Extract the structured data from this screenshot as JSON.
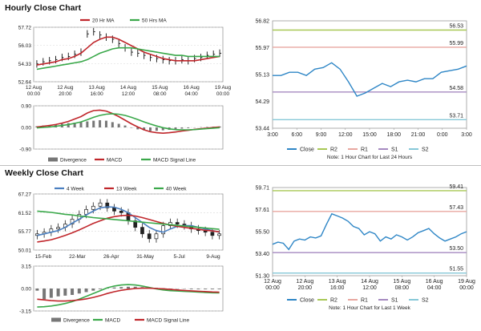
{
  "sections": {
    "hourly_title": "Hourly Close Chart",
    "weekly_title": "Weekly Close Chart"
  },
  "colors": {
    "price": "#111111",
    "ma_red": "#c0262b",
    "ma_green": "#3aa84a",
    "ma_blue": "#4a7fc0",
    "close_line": "#2e86c6",
    "r2": "#a8c855",
    "r1": "#e8a7a0",
    "s1": "#a58ac0",
    "s2": "#86c8d8",
    "divergence": "#777777"
  },
  "chart_data": [
    {
      "id": "hourly_price",
      "type": "line",
      "legend": [
        "20 Hr MA",
        "50 Hrs MA"
      ],
      "legend_colors": [
        "#c0262b",
        "#3aa84a"
      ],
      "y_ticks": [
        "57.72",
        "56.03",
        "54.33",
        "52.64"
      ],
      "ylim": [
        52.64,
        57.72
      ],
      "x_labels": [
        [
          "12 Aug",
          "00:00"
        ],
        [
          "12 Aug",
          "20:00"
        ],
        [
          "13 Aug",
          "16:00"
        ],
        [
          "14 Aug",
          "12:00"
        ],
        [
          "15 Aug",
          "08:00"
        ],
        [
          "16 Aug",
          "04:00"
        ],
        [
          "19 Aug",
          "00:00"
        ]
      ],
      "series": [
        {
          "name": "Price",
          "style": "bars",
          "values": [
            54.3,
            54.5,
            54.6,
            54.7,
            54.9,
            55.0,
            55.2,
            55.4,
            57.1,
            57.3,
            57.0,
            56.8,
            56.6,
            56.2,
            55.8,
            55.4,
            55.3,
            55.1,
            54.9,
            54.8,
            54.7,
            54.6,
            54.6,
            54.7,
            54.6,
            54.8,
            54.9,
            55.1,
            55.2,
            55.3
          ]
        },
        {
          "name": "20 Hr MA",
          "values": [
            54.2,
            54.3,
            54.4,
            54.5,
            54.7,
            54.8,
            55.0,
            55.3,
            55.8,
            56.3,
            56.6,
            56.8,
            56.8,
            56.6,
            56.3,
            56.0,
            55.7,
            55.4,
            55.2,
            55.0,
            54.8,
            54.7,
            54.6,
            54.6,
            54.6,
            54.6,
            54.7,
            54.8,
            54.9,
            55.0
          ]
        },
        {
          "name": "50 Hrs MA",
          "values": [
            53.8,
            53.9,
            54.0,
            54.1,
            54.2,
            54.3,
            54.4,
            54.5,
            54.7,
            55.0,
            55.3,
            55.5,
            55.7,
            55.8,
            55.8,
            55.8,
            55.7,
            55.6,
            55.5,
            55.4,
            55.3,
            55.2,
            55.1,
            55.1,
            55.0,
            55.0,
            55.0,
            55.0,
            55.0,
            55.0
          ]
        }
      ]
    },
    {
      "id": "hourly_macd",
      "type": "line",
      "y_ticks": [
        "0.90",
        "0.00",
        "-0.90"
      ],
      "ylim": [
        -0.9,
        0.9
      ],
      "legend": [
        "Divergence",
        "MACD",
        "MACD Signal Line"
      ],
      "legend_colors": [
        "#777777",
        "#c0262b",
        "#3aa84a"
      ],
      "series": [
        {
          "name": "Divergence",
          "style": "hist",
          "values": [
            0.05,
            0.08,
            0.1,
            0.12,
            0.15,
            0.18,
            0.2,
            0.22,
            0.25,
            0.28,
            0.3,
            0.28,
            0.22,
            0.15,
            0.08,
            0.0,
            -0.08,
            -0.12,
            -0.15,
            -0.14,
            -0.12,
            -0.1,
            -0.08,
            -0.05,
            -0.03,
            -0.01,
            0.01,
            0.02,
            0.03,
            0.04
          ]
        },
        {
          "name": "MACD",
          "values": [
            0.02,
            0.05,
            0.08,
            0.12,
            0.18,
            0.25,
            0.35,
            0.45,
            0.6,
            0.7,
            0.72,
            0.68,
            0.58,
            0.45,
            0.3,
            0.15,
            0.02,
            -0.1,
            -0.18,
            -0.22,
            -0.24,
            -0.22,
            -0.19,
            -0.15,
            -0.12,
            -0.08,
            -0.05,
            -0.03,
            0.0,
            0.02
          ]
        },
        {
          "name": "MACD Signal Line",
          "values": [
            -0.02,
            0.0,
            0.02,
            0.05,
            0.08,
            0.12,
            0.17,
            0.23,
            0.32,
            0.42,
            0.5,
            0.55,
            0.57,
            0.55,
            0.5,
            0.42,
            0.33,
            0.23,
            0.14,
            0.06,
            -0.01,
            -0.06,
            -0.09,
            -0.1,
            -0.1,
            -0.09,
            -0.07,
            -0.05,
            -0.03,
            -0.01
          ]
        }
      ]
    },
    {
      "id": "hourly_close",
      "type": "line",
      "y_ticks": [
        "56.82",
        "55.97",
        "55.13",
        "54.29",
        "53.44"
      ],
      "ylim": [
        53.44,
        56.82
      ],
      "x_labels": [
        "3:00",
        "6:00",
        "9:00",
        "12:00",
        "15:00",
        "18:00",
        "21:00",
        "0:00",
        "3:00"
      ],
      "levels": [
        {
          "name": "R2",
          "value": 56.53,
          "label": "56.53",
          "color": "#a8c855"
        },
        {
          "name": "R1",
          "value": 55.99,
          "label": "55.99",
          "color": "#e8a7a0"
        },
        {
          "name": "S1",
          "value": 54.58,
          "label": "54.58",
          "color": "#a58ac0"
        },
        {
          "name": "S2",
          "value": 53.71,
          "label": "53.71",
          "color": "#86c8d8"
        }
      ],
      "series": [
        {
          "name": "Close",
          "values": [
            55.1,
            55.1,
            55.2,
            55.2,
            55.1,
            55.3,
            55.35,
            55.5,
            55.3,
            54.9,
            54.45,
            54.55,
            54.7,
            54.85,
            54.75,
            54.9,
            54.95,
            54.9,
            55.0,
            55.0,
            55.2,
            55.25,
            55.3,
            55.4
          ]
        }
      ],
      "legend": [
        "Close",
        "R2",
        "R1",
        "S1",
        "S2"
      ],
      "note": "Note: 1 Hour Chart for Last 24 Hours"
    },
    {
      "id": "weekly_price",
      "type": "line",
      "legend": [
        "4 Week",
        "13 Week",
        "40 Week"
      ],
      "legend_colors": [
        "#4a7fc0",
        "#c0262b",
        "#3aa84a"
      ],
      "y_ticks": [
        "67.27",
        "61.52",
        "55.77",
        "50.01"
      ],
      "ylim": [
        50.01,
        67.27
      ],
      "x_labels": [
        "15-Feb",
        "22-Mar",
        "26-Apr",
        "31-May",
        "5-Jul",
        "9-Aug"
      ],
      "series": [
        {
          "name": "Price",
          "style": "candles",
          "values": [
            55.0,
            55.5,
            56.5,
            57.0,
            58.0,
            59.5,
            61.0,
            62.5,
            63.5,
            64.5,
            63.0,
            62.0,
            61.5,
            59.0,
            57.0,
            55.0,
            53.5,
            55.0,
            57.5,
            58.5,
            58.0,
            57.5,
            56.5,
            56.0,
            55.5,
            54.5,
            55.0
          ]
        },
        {
          "name": "4 Week",
          "values": [
            54.5,
            55.0,
            55.5,
            56.0,
            57.0,
            58.3,
            59.5,
            60.8,
            62.0,
            63.0,
            63.3,
            63.2,
            62.5,
            61.5,
            60.0,
            58.5,
            57.0,
            56.0,
            55.5,
            56.5,
            57.3,
            57.5,
            57.5,
            57.0,
            56.5,
            56.0,
            55.5
          ]
        },
        {
          "name": "13 Week",
          "values": [
            52.5,
            52.8,
            53.2,
            53.8,
            54.5,
            55.3,
            56.2,
            57.2,
            58.2,
            59.0,
            59.8,
            60.3,
            60.6,
            60.7,
            60.5,
            60.0,
            59.4,
            58.8,
            58.2,
            57.7,
            57.3,
            57.0,
            56.7,
            56.4,
            56.1,
            55.9,
            55.6
          ]
        },
        {
          "name": "40 Week",
          "values": [
            62.0,
            61.8,
            61.6,
            61.3,
            61.0,
            60.8,
            60.5,
            60.3,
            60.0,
            59.8,
            59.6,
            59.4,
            59.2,
            59.0,
            58.8,
            58.6,
            58.4,
            58.2,
            58.0,
            57.8,
            57.6,
            57.4,
            57.2,
            57.0,
            56.8,
            56.6,
            56.4
          ]
        }
      ]
    },
    {
      "id": "weekly_macd",
      "type": "line",
      "y_ticks": [
        "3.15",
        "0.00",
        "-3.15"
      ],
      "ylim": [
        -3.15,
        3.15
      ],
      "legend": [
        "Divergence",
        "MACD",
        "MACD Signal Line"
      ],
      "legend_colors": [
        "#777777",
        "#3aa84a",
        "#c0262b"
      ],
      "series": [
        {
          "name": "Divergence",
          "style": "hist",
          "values": [
            -0.3,
            -1.5,
            -1.3,
            -1.1,
            -1.0,
            -0.9,
            -0.7,
            -0.5,
            -0.3,
            -0.1,
            0.05,
            0.15,
            0.2,
            0.25,
            0.25,
            0.2,
            0.15,
            0.1,
            0.05,
            0.0,
            -0.05,
            -0.05,
            -0.1,
            -0.1,
            -0.1,
            -0.1,
            -0.1
          ]
        },
        {
          "name": "MACD",
          "values": [
            -2.6,
            -2.55,
            -2.45,
            -2.3,
            -2.1,
            -1.85,
            -1.5,
            -1.1,
            -0.7,
            -0.3,
            0.1,
            0.35,
            0.5,
            0.55,
            0.5,
            0.35,
            0.15,
            -0.05,
            -0.2,
            -0.3,
            -0.35,
            -0.4,
            -0.45,
            -0.5,
            -0.55,
            -0.6,
            -0.62
          ]
        },
        {
          "name": "MACD Signal Line",
          "values": [
            -1.5,
            -1.6,
            -1.7,
            -1.75,
            -1.75,
            -1.7,
            -1.6,
            -1.45,
            -1.25,
            -1.0,
            -0.7,
            -0.45,
            -0.25,
            -0.1,
            0.0,
            0.05,
            0.05,
            0.0,
            -0.05,
            -0.12,
            -0.2,
            -0.27,
            -0.33,
            -0.38,
            -0.43,
            -0.48,
            -0.52
          ]
        }
      ]
    },
    {
      "id": "weekly_close",
      "type": "line",
      "y_ticks": [
        "59.71",
        "57.61",
        "55.50",
        "53.40",
        "51.30"
      ],
      "ylim": [
        51.3,
        59.71
      ],
      "x_labels": [
        [
          "12 Aug",
          "00:00"
        ],
        [
          "12 Aug",
          "20:00"
        ],
        [
          "13 Aug",
          "16:00"
        ],
        [
          "14 Aug",
          "12:00"
        ],
        [
          "15 Aug",
          "08:00"
        ],
        [
          "16 Aug",
          "04:00"
        ],
        [
          "19 Aug",
          "00:00"
        ]
      ],
      "levels": [
        {
          "name": "R2",
          "value": 59.41,
          "label": "59.41",
          "color": "#a8c855"
        },
        {
          "name": "R1",
          "value": 57.43,
          "label": "57.43",
          "color": "#e8a7a0"
        },
        {
          "name": "S1",
          "value": 53.5,
          "label": "53.50",
          "color": "#a58ac0"
        },
        {
          "name": "S2",
          "value": 51.55,
          "label": "51.55",
          "color": "#86c8d8"
        }
      ],
      "series": [
        {
          "name": "Close",
          "values": [
            54.3,
            54.5,
            54.4,
            53.8,
            54.6,
            54.8,
            54.7,
            55.0,
            54.9,
            55.1,
            56.2,
            57.2,
            57.0,
            56.8,
            56.5,
            56.0,
            55.8,
            55.2,
            55.5,
            55.3,
            54.6,
            55.0,
            54.8,
            55.2,
            55.0,
            54.7,
            55.0,
            55.4,
            55.6,
            55.8,
            55.3,
            54.9,
            54.6,
            54.8,
            55.0,
            55.3,
            55.5
          ]
        }
      ],
      "legend": [
        "Close",
        "R2",
        "R1",
        "S1",
        "S2"
      ],
      "note": "Note: 1 Hour Chart for Last 1 Week"
    }
  ]
}
